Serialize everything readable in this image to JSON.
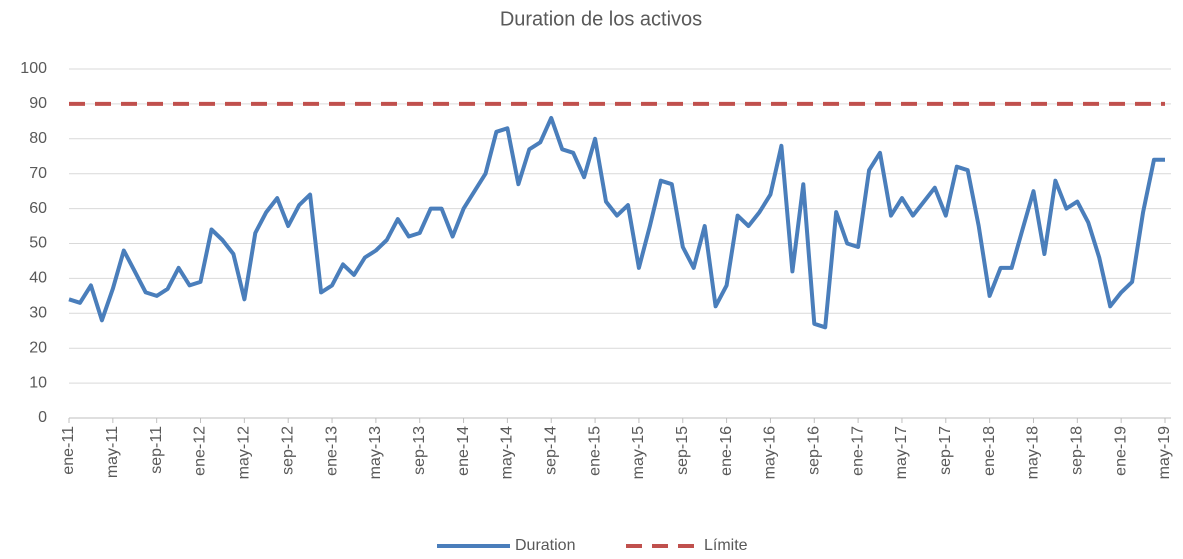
{
  "chart_data": {
    "type": "line",
    "title": "Duration de los activos",
    "categories": [
      "ene-11",
      null,
      null,
      null,
      "may-11",
      null,
      null,
      null,
      "sep-11",
      null,
      null,
      null,
      "ene-12",
      null,
      null,
      null,
      "may-12",
      null,
      null,
      null,
      "sep-12",
      null,
      null,
      null,
      "ene-13",
      null,
      null,
      null,
      "may-13",
      null,
      null,
      null,
      "sep-13",
      null,
      null,
      null,
      "ene-14",
      null,
      null,
      null,
      "may-14",
      null,
      null,
      null,
      "sep-14",
      null,
      null,
      null,
      "ene-15",
      null,
      null,
      null,
      "may-15",
      null,
      null,
      null,
      "sep-15",
      null,
      null,
      null,
      "ene-16",
      null,
      null,
      null,
      "may-16",
      null,
      null,
      null,
      "sep-16",
      null,
      null,
      null,
      "ene-17",
      null,
      null,
      null,
      "may-17",
      null,
      null,
      null,
      "sep-17",
      null,
      null,
      null,
      "ene-18",
      null,
      null,
      null,
      "may-18",
      null,
      null,
      null,
      "sep-18",
      null,
      null,
      null,
      "ene-19",
      null,
      null,
      null,
      "may-19"
    ],
    "series": [
      {
        "name": "Duration",
        "color": "#4a7ebb",
        "line_style": "solid",
        "values": [
          34,
          33,
          38,
          28,
          37,
          48,
          42,
          36,
          35,
          37,
          43,
          38,
          39,
          54,
          51,
          47,
          34,
          53,
          59,
          63,
          55,
          61,
          64,
          36,
          38,
          44,
          41,
          46,
          48,
          51,
          57,
          52,
          53,
          60,
          60,
          52,
          60,
          65,
          70,
          82,
          83,
          67,
          77,
          79,
          86,
          77,
          76,
          69,
          80,
          62,
          58,
          61,
          43,
          55,
          68,
          67,
          49,
          43,
          55,
          32,
          38,
          58,
          55,
          59,
          64,
          78,
          42,
          67,
          27,
          26,
          59,
          50,
          49,
          71,
          76,
          58,
          63,
          58,
          62,
          66,
          58,
          72,
          71,
          55,
          35,
          43,
          43,
          54,
          65,
          47,
          68,
          60,
          62,
          56,
          46,
          32,
          36,
          39,
          59,
          74,
          74
        ]
      },
      {
        "name": "Límite",
        "color": "#c0504d",
        "line_style": "dashed",
        "values": [
          90,
          90,
          90,
          90,
          90,
          90,
          90,
          90,
          90,
          90,
          90,
          90,
          90,
          90,
          90,
          90,
          90,
          90,
          90,
          90,
          90,
          90,
          90,
          90,
          90,
          90,
          90,
          90,
          90,
          90,
          90,
          90,
          90,
          90,
          90,
          90,
          90,
          90,
          90,
          90,
          90,
          90,
          90,
          90,
          90,
          90,
          90,
          90,
          90,
          90,
          90,
          90,
          90,
          90,
          90,
          90,
          90,
          90,
          90,
          90,
          90,
          90,
          90,
          90,
          90,
          90,
          90,
          90,
          90,
          90,
          90,
          90,
          90,
          90,
          90,
          90,
          90,
          90,
          90,
          90,
          90,
          90,
          90,
          90,
          90,
          90,
          90,
          90,
          90,
          90,
          90,
          90,
          90,
          90,
          90,
          90,
          90,
          90,
          90,
          90,
          90
        ]
      }
    ],
    "ylim": [
      0,
      100
    ],
    "yticks": [
      0,
      10,
      20,
      30,
      40,
      50,
      60,
      70,
      80,
      90,
      100
    ],
    "grid": true,
    "legend": "bottom"
  }
}
